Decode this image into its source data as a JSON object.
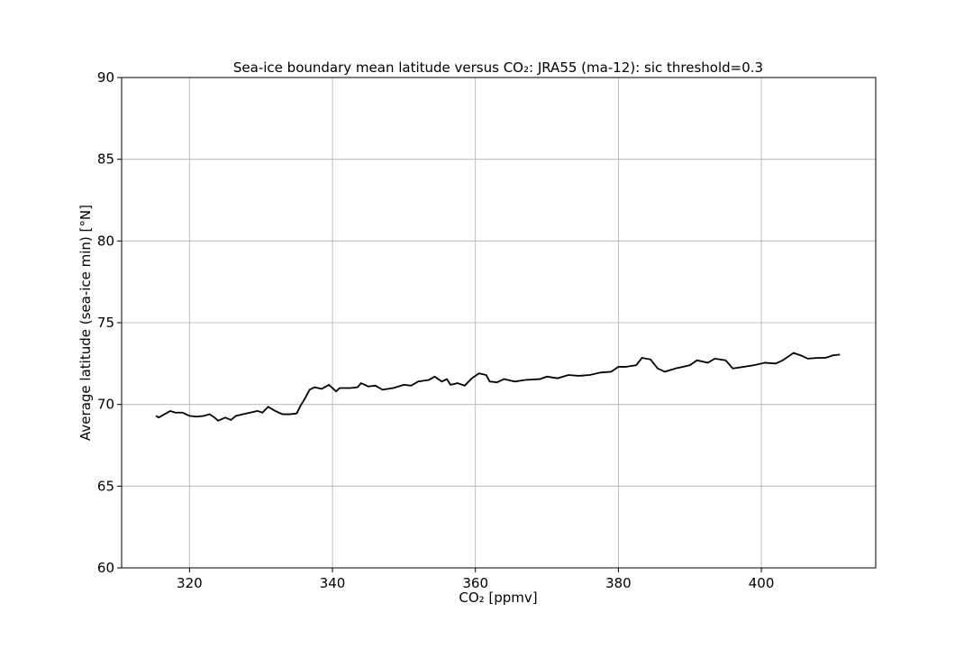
{
  "chart_data": {
    "type": "line",
    "title": "Sea-ice boundary mean latitude versus CO₂: JRA55 (ma-12): sic threshold=0.3",
    "x_label": "CO₂ [ppmv]",
    "y_label": "Average latitude (sea-ice min) [°N]",
    "xlim": [
      310.5,
      416
    ],
    "ylim": [
      60,
      90
    ],
    "xticks": [
      320,
      340,
      360,
      380,
      400
    ],
    "yticks": [
      60,
      65,
      70,
      75,
      80,
      85,
      90
    ],
    "grid": true,
    "series": [
      {
        "color": "#000000",
        "x": [
          315.3,
          315.7,
          316.5,
          317.3,
          318,
          319,
          320,
          321,
          322,
          322.8,
          323.5,
          324,
          325,
          325.8,
          326.5,
          327.5,
          328.5,
          329.5,
          330.2,
          331,
          332,
          333,
          334,
          335,
          335.5,
          336.2,
          336.8,
          337.5,
          338.5,
          339.5,
          340.5,
          341,
          342.5,
          343.5,
          344,
          345,
          346,
          347,
          348.5,
          350,
          351,
          352,
          353.5,
          354.3,
          355.3,
          356,
          356.5,
          357.5,
          358.5,
          359.5,
          360.5,
          361.5,
          362,
          363,
          364,
          365.5,
          367,
          369,
          370,
          371.5,
          373,
          374.5,
          376,
          377.5,
          379,
          380,
          381,
          382.5,
          383.3,
          384.5,
          385.5,
          386.5,
          388,
          390,
          391,
          392.5,
          393.5,
          395,
          396,
          397.5,
          399,
          400.5,
          402,
          403,
          404.5,
          405.5,
          406.5,
          408,
          409,
          410,
          411
        ],
        "values": [
          69.3,
          69.2,
          69.4,
          69.6,
          69.5,
          69.5,
          69.3,
          69.25,
          69.3,
          69.4,
          69.2,
          69.0,
          69.2,
          69.05,
          69.3,
          69.4,
          69.5,
          69.6,
          69.5,
          69.85,
          69.6,
          69.4,
          69.4,
          69.45,
          69.9,
          70.4,
          70.9,
          71.05,
          70.95,
          71.2,
          70.8,
          71.0,
          71.0,
          71.05,
          71.3,
          71.1,
          71.15,
          70.9,
          71.0,
          71.2,
          71.15,
          71.4,
          71.5,
          71.7,
          71.4,
          71.55,
          71.2,
          71.3,
          71.15,
          71.6,
          71.9,
          71.8,
          71.4,
          71.35,
          71.55,
          71.4,
          71.5,
          71.55,
          71.7,
          71.6,
          71.8,
          71.75,
          71.8,
          71.95,
          72.0,
          72.3,
          72.3,
          72.4,
          72.85,
          72.75,
          72.2,
          72.0,
          72.2,
          72.4,
          72.7,
          72.55,
          72.8,
          72.7,
          72.2,
          72.3,
          72.4,
          72.55,
          72.5,
          72.7,
          73.15,
          73.0,
          72.8,
          72.85,
          72.85,
          73.0,
          73.05
        ]
      }
    ]
  }
}
